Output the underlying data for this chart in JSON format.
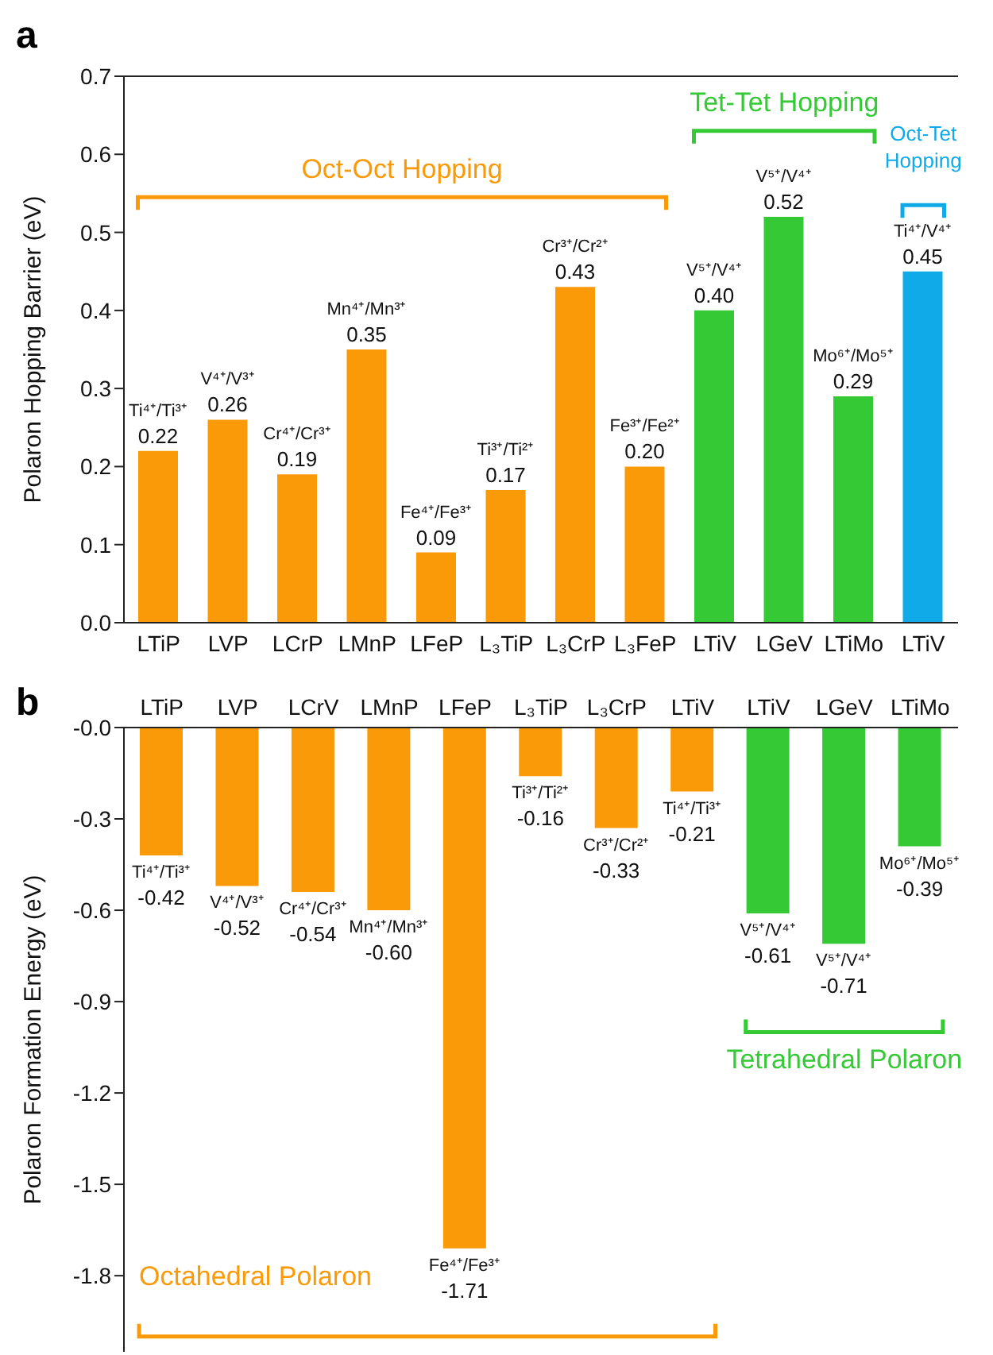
{
  "chart_data": [
    {
      "type": "bar",
      "title": "a",
      "ylabel": "Polaron Hopping Barrier (eV)",
      "categories": [
        "LTiP",
        "LVP",
        "LCrP",
        "LMnP",
        "LFeP",
        "L₃TiP",
        "L₃CrP",
        "L₃FeP",
        "LTiV",
        "LGeV",
        "LTiMo",
        "LTiV"
      ],
      "values": [
        0.22,
        0.26,
        0.19,
        0.35,
        0.09,
        0.17,
        0.43,
        0.2,
        0.4,
        0.52,
        0.29,
        0.45
      ],
      "colors": [
        "#fb9a09",
        "#fb9a09",
        "#fb9a09",
        "#fb9a09",
        "#fb9a09",
        "#fb9a09",
        "#fb9a09",
        "#fb9a09",
        "#35c936",
        "#35c936",
        "#35c936",
        "#10aae8"
      ],
      "value_labels": [
        "Ti⁴⁺/Ti³⁺ 0.22",
        "V⁴⁺/V³⁺ 0.26",
        "Cr⁴⁺/Cr³⁺ 0.19",
        "Mn⁴⁺/Mn³⁺ 0.35",
        "Fe⁴⁺/Fe³⁺ 0.09",
        "Ti³⁺/Ti²⁺ 0.17",
        "Cr³⁺/Cr²⁺ 0.43",
        "Fe³⁺/Fe²⁺ 0.20",
        "V⁵⁺/V⁴⁺ 0.40",
        "V⁵⁺/V⁴⁺ 0.52",
        "Mo⁶⁺/Mo⁵⁺ 0.29",
        "Ti⁴⁺/V⁴⁺ 0.45"
      ],
      "annotations": [
        "Oct-Oct Hopping",
        "Tet-Tet Hopping",
        "Oct-Tet Hopping"
      ],
      "ylim": [
        0,
        0.7
      ],
      "yticks": [
        {
          "value": 0,
          "label": "0.0"
        },
        0.1,
        0.2,
        0.3,
        0.4,
        0.5,
        0.6,
        0.7
      ],
      "grid": false,
      "legend": false
    },
    {
      "type": "bar",
      "title": "b",
      "ylabel": "Polaron Formation Energy (eV)",
      "categories": [
        "LTiP",
        "LVP",
        "LCrV",
        "LMnP",
        "LFeP",
        "L₃TiP",
        "L₃CrP",
        "LTiV",
        "LTiV",
        "LGeV",
        "LTiMo"
      ],
      "values": [
        -0.42,
        -0.52,
        -0.54,
        -0.6,
        -1.71,
        -0.16,
        -0.33,
        -0.21,
        -0.61,
        -0.71,
        -0.39
      ],
      "colors": [
        "#fb9a09",
        "#fb9a09",
        "#fb9a09",
        "#fb9a09",
        "#fb9a09",
        "#fb9a09",
        "#fb9a09",
        "#fb9a09",
        "#35c936",
        "#35c936",
        "#35c936"
      ],
      "value_labels": [
        "Ti⁴⁺/Ti³⁺ -0.42",
        "V⁴⁺/V³⁺ -0.52",
        "Cr⁴⁺/Cr³⁺ -0.54",
        "Mn⁴⁺/Mn³⁺ -0.60",
        "Fe⁴⁺/Fe³⁺ -1.71",
        "Ti³⁺/Ti²⁺ -0.16",
        "Cr³⁺/Cr²⁺ -0.33",
        "Ti⁴⁺/Ti³⁺ -0.21",
        "V⁵⁺/V⁴⁺ -0.61",
        "V⁵⁺/V⁴⁺ -0.71",
        "Mo⁶⁺/Mo⁵⁺ -0.39"
      ],
      "annotations": [
        "Octahedral Polaron",
        "Tetrahedral Polaron"
      ],
      "ylim": [
        -2.05,
        0
      ],
      "yticks": [
        {
          "value": 0,
          "label": "-0.0"
        },
        -0.3,
        -0.6,
        -0.9,
        -1.2,
        -1.5,
        -1.8
      ],
      "grid": false,
      "legend": false
    }
  ]
}
